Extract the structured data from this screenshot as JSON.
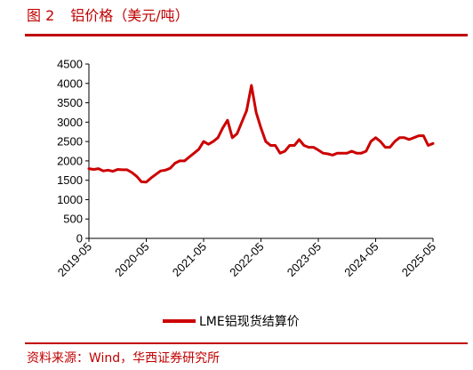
{
  "figure": {
    "number": "图 2",
    "title": "铝价格（美元/吨）",
    "source": "资料来源：Wind，华西证券研究所"
  },
  "colors": {
    "accent": "#c00000",
    "series": "#cc0000"
  },
  "chart_data": {
    "type": "line",
    "title": "铝价格（美元/吨）",
    "xlabel": "",
    "ylabel": "",
    "ylim": [
      0,
      4500
    ],
    "y_ticks": [
      "0",
      "500",
      "1000",
      "1500",
      "2000",
      "2500",
      "3000",
      "3500",
      "4000",
      "4500"
    ],
    "x_ticks": [
      "2019-05",
      "2020-05",
      "2021-05",
      "2022-05",
      "2023-05",
      "2024-05",
      "2025-05"
    ],
    "x_range": [
      "2019-05",
      "2025-05"
    ],
    "grid": false,
    "legend": "bottom",
    "series": [
      {
        "name": "LME铝现货结算价",
        "color": "#cc0000",
        "points": [
          [
            "2019-05",
            1800
          ],
          [
            "2019-06",
            1780
          ],
          [
            "2019-07",
            1800
          ],
          [
            "2019-08",
            1740
          ],
          [
            "2019-09",
            1760
          ],
          [
            "2019-10",
            1730
          ],
          [
            "2019-11",
            1780
          ],
          [
            "2019-12",
            1770
          ],
          [
            "2020-01",
            1770
          ],
          [
            "2020-02",
            1700
          ],
          [
            "2020-03",
            1600
          ],
          [
            "2020-04",
            1460
          ],
          [
            "2020-05",
            1450
          ],
          [
            "2020-06",
            1560
          ],
          [
            "2020-07",
            1650
          ],
          [
            "2020-08",
            1740
          ],
          [
            "2020-09",
            1760
          ],
          [
            "2020-10",
            1810
          ],
          [
            "2020-11",
            1940
          ],
          [
            "2020-12",
            2000
          ],
          [
            "2021-01",
            2000
          ],
          [
            "2021-02",
            2100
          ],
          [
            "2021-03",
            2200
          ],
          [
            "2021-04",
            2300
          ],
          [
            "2021-05",
            2500
          ],
          [
            "2021-06",
            2430
          ],
          [
            "2021-07",
            2500
          ],
          [
            "2021-08",
            2600
          ],
          [
            "2021-09",
            2850
          ],
          [
            "2021-10",
            3050
          ],
          [
            "2021-11",
            2600
          ],
          [
            "2021-12",
            2700
          ],
          [
            "2022-01",
            3000
          ],
          [
            "2022-02",
            3300
          ],
          [
            "2022-03",
            3950
          ],
          [
            "2022-04",
            3250
          ],
          [
            "2022-05",
            2850
          ],
          [
            "2022-06",
            2500
          ],
          [
            "2022-07",
            2400
          ],
          [
            "2022-08",
            2400
          ],
          [
            "2022-09",
            2200
          ],
          [
            "2022-10",
            2250
          ],
          [
            "2022-11",
            2400
          ],
          [
            "2022-12",
            2400
          ],
          [
            "2023-01",
            2550
          ],
          [
            "2023-02",
            2400
          ],
          [
            "2023-03",
            2350
          ],
          [
            "2023-04",
            2350
          ],
          [
            "2023-05",
            2280
          ],
          [
            "2023-06",
            2200
          ],
          [
            "2023-07",
            2180
          ],
          [
            "2023-08",
            2150
          ],
          [
            "2023-09",
            2200
          ],
          [
            "2023-10",
            2200
          ],
          [
            "2023-11",
            2200
          ],
          [
            "2023-12",
            2250
          ],
          [
            "2024-01",
            2200
          ],
          [
            "2024-02",
            2200
          ],
          [
            "2024-03",
            2250
          ],
          [
            "2024-04",
            2500
          ],
          [
            "2024-05",
            2600
          ],
          [
            "2024-06",
            2500
          ],
          [
            "2024-07",
            2350
          ],
          [
            "2024-08",
            2350
          ],
          [
            "2024-09",
            2500
          ],
          [
            "2024-10",
            2600
          ],
          [
            "2024-11",
            2600
          ],
          [
            "2024-12",
            2550
          ],
          [
            "2025-01",
            2600
          ],
          [
            "2025-02",
            2650
          ],
          [
            "2025-03",
            2650
          ],
          [
            "2025-04",
            2400
          ],
          [
            "2025-05",
            2450
          ]
        ]
      }
    ]
  }
}
